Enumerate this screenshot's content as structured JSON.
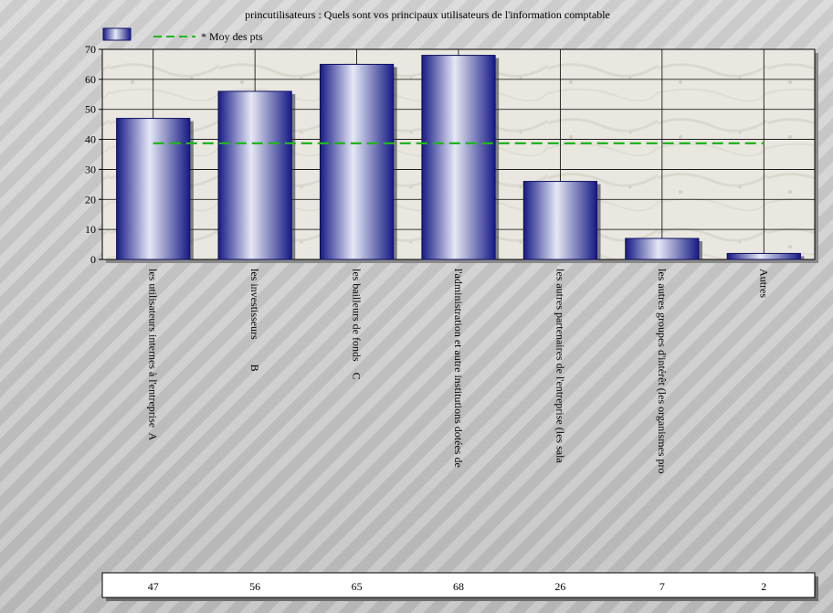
{
  "chart_data": {
    "type": "bar",
    "title": "princutilisateurs : Quels sont vos principaux utilisateurs de l'information comptable",
    "categories": [
      "les utilisateurs internes à l'entreprise  A",
      "les investisseurs         B",
      "les bailleurs de fonds    C",
      "l'administration et autre institutions dotées de",
      "les autres partenaires de l'entreprise (les sala",
      "les autres groupes d'intérêt (les organismes pro",
      "Autres"
    ],
    "values": [
      47,
      56,
      65,
      68,
      26,
      7,
      2
    ],
    "value_labels": [
      "47",
      "56",
      "65",
      "68",
      "26",
      "7",
      "2"
    ],
    "yticks": [
      0,
      10,
      20,
      30,
      40,
      50,
      60,
      70
    ],
    "ylim": [
      0,
      70
    ],
    "grid": true,
    "legend": {
      "placement": "top-left",
      "entries": [
        {
          "name": "",
          "kind": "bar-swatch"
        },
        {
          "name": "* Moy des pts",
          "kind": "dashed-line"
        }
      ]
    },
    "reference_line": {
      "name": "* Moy des pts",
      "value": 38.7
    },
    "colors": {
      "bar_dark": "#1a1f8c",
      "bar_light": "#e4e6f4",
      "reference_line": "#1fb51f",
      "plot_background": "#e8e6de"
    }
  }
}
